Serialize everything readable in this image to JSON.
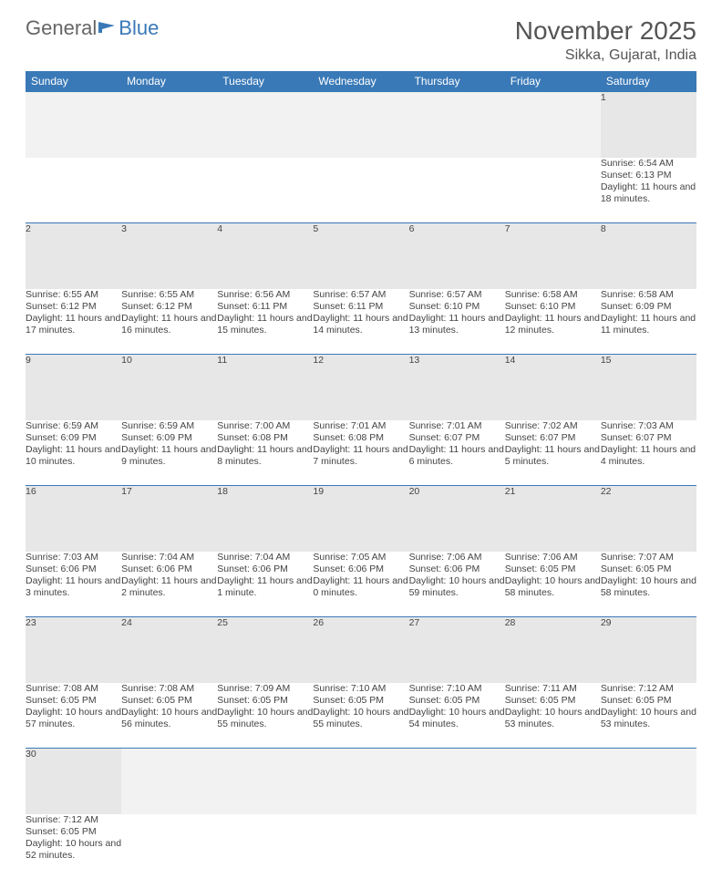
{
  "brand": {
    "general": "General",
    "blue": "Blue"
  },
  "title": "November 2025",
  "location": "Sikka, Gujarat, India",
  "day_headers": [
    "Sunday",
    "Monday",
    "Tuesday",
    "Wednesday",
    "Thursday",
    "Friday",
    "Saturday"
  ],
  "colors": {
    "header_bg": "#3a79b7",
    "header_fg": "#ffffff",
    "daynum_bg": "#e7e7e7",
    "row_border": "#3a79b7",
    "text": "#444444",
    "page_bg": "#ffffff"
  },
  "weeks": [
    [
      null,
      null,
      null,
      null,
      null,
      null,
      {
        "n": "1",
        "sr": "Sunrise: 6:54 AM",
        "ss": "Sunset: 6:13 PM",
        "dl": "Daylight: 11 hours and 18 minutes."
      }
    ],
    [
      {
        "n": "2",
        "sr": "Sunrise: 6:55 AM",
        "ss": "Sunset: 6:12 PM",
        "dl": "Daylight: 11 hours and 17 minutes."
      },
      {
        "n": "3",
        "sr": "Sunrise: 6:55 AM",
        "ss": "Sunset: 6:12 PM",
        "dl": "Daylight: 11 hours and 16 minutes."
      },
      {
        "n": "4",
        "sr": "Sunrise: 6:56 AM",
        "ss": "Sunset: 6:11 PM",
        "dl": "Daylight: 11 hours and 15 minutes."
      },
      {
        "n": "5",
        "sr": "Sunrise: 6:57 AM",
        "ss": "Sunset: 6:11 PM",
        "dl": "Daylight: 11 hours and 14 minutes."
      },
      {
        "n": "6",
        "sr": "Sunrise: 6:57 AM",
        "ss": "Sunset: 6:10 PM",
        "dl": "Daylight: 11 hours and 13 minutes."
      },
      {
        "n": "7",
        "sr": "Sunrise: 6:58 AM",
        "ss": "Sunset: 6:10 PM",
        "dl": "Daylight: 11 hours and 12 minutes."
      },
      {
        "n": "8",
        "sr": "Sunrise: 6:58 AM",
        "ss": "Sunset: 6:09 PM",
        "dl": "Daylight: 11 hours and 11 minutes."
      }
    ],
    [
      {
        "n": "9",
        "sr": "Sunrise: 6:59 AM",
        "ss": "Sunset: 6:09 PM",
        "dl": "Daylight: 11 hours and 10 minutes."
      },
      {
        "n": "10",
        "sr": "Sunrise: 6:59 AM",
        "ss": "Sunset: 6:09 PM",
        "dl": "Daylight: 11 hours and 9 minutes."
      },
      {
        "n": "11",
        "sr": "Sunrise: 7:00 AM",
        "ss": "Sunset: 6:08 PM",
        "dl": "Daylight: 11 hours and 8 minutes."
      },
      {
        "n": "12",
        "sr": "Sunrise: 7:01 AM",
        "ss": "Sunset: 6:08 PM",
        "dl": "Daylight: 11 hours and 7 minutes."
      },
      {
        "n": "13",
        "sr": "Sunrise: 7:01 AM",
        "ss": "Sunset: 6:07 PM",
        "dl": "Daylight: 11 hours and 6 minutes."
      },
      {
        "n": "14",
        "sr": "Sunrise: 7:02 AM",
        "ss": "Sunset: 6:07 PM",
        "dl": "Daylight: 11 hours and 5 minutes."
      },
      {
        "n": "15",
        "sr": "Sunrise: 7:03 AM",
        "ss": "Sunset: 6:07 PM",
        "dl": "Daylight: 11 hours and 4 minutes."
      }
    ],
    [
      {
        "n": "16",
        "sr": "Sunrise: 7:03 AM",
        "ss": "Sunset: 6:06 PM",
        "dl": "Daylight: 11 hours and 3 minutes."
      },
      {
        "n": "17",
        "sr": "Sunrise: 7:04 AM",
        "ss": "Sunset: 6:06 PM",
        "dl": "Daylight: 11 hours and 2 minutes."
      },
      {
        "n": "18",
        "sr": "Sunrise: 7:04 AM",
        "ss": "Sunset: 6:06 PM",
        "dl": "Daylight: 11 hours and 1 minute."
      },
      {
        "n": "19",
        "sr": "Sunrise: 7:05 AM",
        "ss": "Sunset: 6:06 PM",
        "dl": "Daylight: 11 hours and 0 minutes."
      },
      {
        "n": "20",
        "sr": "Sunrise: 7:06 AM",
        "ss": "Sunset: 6:06 PM",
        "dl": "Daylight: 10 hours and 59 minutes."
      },
      {
        "n": "21",
        "sr": "Sunrise: 7:06 AM",
        "ss": "Sunset: 6:05 PM",
        "dl": "Daylight: 10 hours and 58 minutes."
      },
      {
        "n": "22",
        "sr": "Sunrise: 7:07 AM",
        "ss": "Sunset: 6:05 PM",
        "dl": "Daylight: 10 hours and 58 minutes."
      }
    ],
    [
      {
        "n": "23",
        "sr": "Sunrise: 7:08 AM",
        "ss": "Sunset: 6:05 PM",
        "dl": "Daylight: 10 hours and 57 minutes."
      },
      {
        "n": "24",
        "sr": "Sunrise: 7:08 AM",
        "ss": "Sunset: 6:05 PM",
        "dl": "Daylight: 10 hours and 56 minutes."
      },
      {
        "n": "25",
        "sr": "Sunrise: 7:09 AM",
        "ss": "Sunset: 6:05 PM",
        "dl": "Daylight: 10 hours and 55 minutes."
      },
      {
        "n": "26",
        "sr": "Sunrise: 7:10 AM",
        "ss": "Sunset: 6:05 PM",
        "dl": "Daylight: 10 hours and 55 minutes."
      },
      {
        "n": "27",
        "sr": "Sunrise: 7:10 AM",
        "ss": "Sunset: 6:05 PM",
        "dl": "Daylight: 10 hours and 54 minutes."
      },
      {
        "n": "28",
        "sr": "Sunrise: 7:11 AM",
        "ss": "Sunset: 6:05 PM",
        "dl": "Daylight: 10 hours and 53 minutes."
      },
      {
        "n": "29",
        "sr": "Sunrise: 7:12 AM",
        "ss": "Sunset: 6:05 PM",
        "dl": "Daylight: 10 hours and 53 minutes."
      }
    ],
    [
      {
        "n": "30",
        "sr": "Sunrise: 7:12 AM",
        "ss": "Sunset: 6:05 PM",
        "dl": "Daylight: 10 hours and 52 minutes."
      },
      null,
      null,
      null,
      null,
      null,
      null
    ]
  ]
}
